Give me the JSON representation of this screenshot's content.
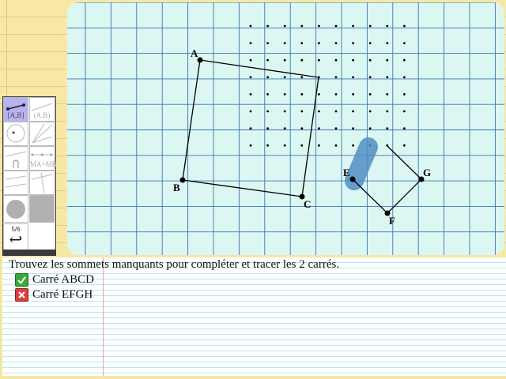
{
  "toolbar": {
    "tools": [
      {
        "label": "[A,B]",
        "state": "active"
      },
      {
        "label": "(A,B)",
        "state": "dim"
      },
      {
        "label": "",
        "state": "normal"
      },
      {
        "label": "",
        "state": "normal"
      },
      {
        "label": "",
        "state": "normal"
      },
      {
        "label": "MA=MB",
        "state": "dim"
      },
      {
        "label": "",
        "state": "normal"
      },
      {
        "label": "",
        "state": "normal"
      },
      {
        "label": "",
        "state": "gray"
      }
    ],
    "page": "5/6",
    "back_icon": "↩"
  },
  "board": {
    "points": {
      "A": "A",
      "B": "B",
      "C": "C",
      "E": "E",
      "F": "F",
      "G": "G"
    }
  },
  "instructions": "Trouvez les sommets manquants pour compléter et tracer les 2 carrés.",
  "tasks": [
    {
      "label": "Carré ABCD",
      "status": "ok"
    },
    {
      "label": "Carré EFGH",
      "status": "fail"
    }
  ],
  "colors": {
    "grid_bg": "#dcf7f1",
    "grid_line": "#3a73b8",
    "highlight": "#4f8ec2",
    "ok": "#3aa83a",
    "fail": "#d94040"
  }
}
